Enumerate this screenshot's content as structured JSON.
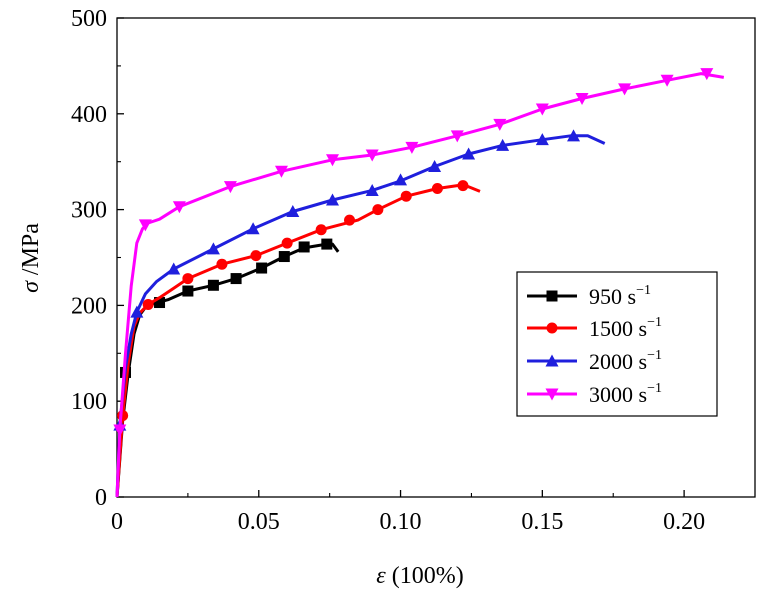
{
  "chart_data": {
    "type": "line",
    "title": "",
    "xlabel": {
      "symbol": "ε",
      "unit": " (100%)"
    },
    "ylabel": {
      "symbol": "σ",
      "unit": " /MPa"
    },
    "xlim": [
      0,
      0.225
    ],
    "ylim": [
      0,
      500
    ],
    "xticks": [
      "0",
      "0.05",
      "0.10",
      "0.15",
      "0.20"
    ],
    "xtick_values": [
      0,
      0.05,
      0.1,
      0.15,
      0.2
    ],
    "yticks": [
      "0",
      "100",
      "200",
      "300",
      "400",
      "500"
    ],
    "ytick_values": [
      0,
      100,
      200,
      300,
      400,
      500
    ],
    "grid": false,
    "legend_position": "center-right",
    "series": [
      {
        "name": "950 s",
        "superscript": "−1",
        "color": "#000000",
        "marker": "square",
        "points": [
          [
            0,
            0
          ],
          [
            0.002,
            80
          ],
          [
            0.004,
            130
          ],
          [
            0.006,
            170
          ],
          [
            0.008,
            190
          ],
          [
            0.01,
            198
          ],
          [
            0.013,
            202
          ],
          [
            0.018,
            206
          ],
          [
            0.025,
            215
          ],
          [
            0.034,
            221
          ],
          [
            0.042,
            228
          ],
          [
            0.051,
            239
          ],
          [
            0.059,
            251
          ],
          [
            0.066,
            260
          ],
          [
            0.074,
            264
          ],
          [
            0.076,
            264
          ],
          [
            0.078,
            256
          ]
        ],
        "markers": [
          [
            0.003,
            130
          ],
          [
            0.015,
            203
          ],
          [
            0.025,
            215
          ],
          [
            0.034,
            221
          ],
          [
            0.042,
            228
          ],
          [
            0.051,
            239
          ],
          [
            0.059,
            251
          ],
          [
            0.066,
            261
          ],
          [
            0.074,
            264
          ]
        ]
      },
      {
        "name": "1500 s",
        "superscript": "−1",
        "color": "#ff0000",
        "marker": "circle",
        "points": [
          [
            0,
            0
          ],
          [
            0.002,
            85
          ],
          [
            0.004,
            140
          ],
          [
            0.006,
            178
          ],
          [
            0.008,
            192
          ],
          [
            0.011,
            201
          ],
          [
            0.015,
            208
          ],
          [
            0.02,
            218
          ],
          [
            0.025,
            228
          ],
          [
            0.037,
            243
          ],
          [
            0.049,
            252
          ],
          [
            0.06,
            265
          ],
          [
            0.072,
            279
          ],
          [
            0.085,
            289
          ],
          [
            0.092,
            300
          ],
          [
            0.102,
            314
          ],
          [
            0.113,
            322
          ],
          [
            0.12,
            325
          ],
          [
            0.123,
            325
          ],
          [
            0.128,
            319
          ]
        ],
        "markers": [
          [
            0.002,
            85
          ],
          [
            0.011,
            201
          ],
          [
            0.025,
            228
          ],
          [
            0.037,
            243
          ],
          [
            0.049,
            252
          ],
          [
            0.06,
            265
          ],
          [
            0.072,
            279
          ],
          [
            0.082,
            289
          ],
          [
            0.092,
            300
          ],
          [
            0.102,
            314
          ],
          [
            0.113,
            322
          ],
          [
            0.122,
            325
          ]
        ]
      },
      {
        "name": "2000 s",
        "superscript": "−1",
        "color": "#1f1fdd",
        "marker": "triangle-up",
        "points": [
          [
            0,
            0
          ],
          [
            0.001,
            75
          ],
          [
            0.003,
            135
          ],
          [
            0.005,
            170
          ],
          [
            0.007,
            193
          ],
          [
            0.01,
            212
          ],
          [
            0.014,
            225
          ],
          [
            0.02,
            238
          ],
          [
            0.034,
            259
          ],
          [
            0.048,
            280
          ],
          [
            0.062,
            298
          ],
          [
            0.076,
            310
          ],
          [
            0.09,
            320
          ],
          [
            0.1,
            330
          ],
          [
            0.112,
            345
          ],
          [
            0.124,
            358
          ],
          [
            0.136,
            367
          ],
          [
            0.15,
            373
          ],
          [
            0.16,
            377
          ],
          [
            0.166,
            377
          ],
          [
            0.172,
            369
          ]
        ],
        "markers": [
          [
            0.001,
            75
          ],
          [
            0.007,
            193
          ],
          [
            0.02,
            238
          ],
          [
            0.034,
            259
          ],
          [
            0.048,
            280
          ],
          [
            0.062,
            298
          ],
          [
            0.076,
            310
          ],
          [
            0.09,
            320
          ],
          [
            0.1,
            331
          ],
          [
            0.112,
            345
          ],
          [
            0.124,
            358
          ],
          [
            0.136,
            367
          ],
          [
            0.15,
            373
          ],
          [
            0.161,
            377
          ]
        ]
      },
      {
        "name": "3000 s",
        "superscript": "−1",
        "color": "#ff00ff",
        "marker": "triangle-down",
        "points": [
          [
            0,
            0
          ],
          [
            0.001,
            70
          ],
          [
            0.003,
            150
          ],
          [
            0.005,
            220
          ],
          [
            0.007,
            265
          ],
          [
            0.009,
            280
          ],
          [
            0.011,
            286
          ],
          [
            0.015,
            290
          ],
          [
            0.022,
            303
          ],
          [
            0.04,
            324
          ],
          [
            0.058,
            340
          ],
          [
            0.076,
            352
          ],
          [
            0.09,
            357
          ],
          [
            0.104,
            365
          ],
          [
            0.12,
            377
          ],
          [
            0.135,
            389
          ],
          [
            0.15,
            405
          ],
          [
            0.164,
            416
          ],
          [
            0.179,
            426
          ],
          [
            0.194,
            435
          ],
          [
            0.206,
            442
          ],
          [
            0.21,
            440
          ],
          [
            0.214,
            438
          ]
        ],
        "markers": [
          [
            0.001,
            70
          ],
          [
            0.01,
            284
          ],
          [
            0.022,
            303
          ],
          [
            0.04,
            324
          ],
          [
            0.058,
            340
          ],
          [
            0.076,
            352
          ],
          [
            0.09,
            357
          ],
          [
            0.104,
            365
          ],
          [
            0.12,
            377
          ],
          [
            0.135,
            389
          ],
          [
            0.15,
            405
          ],
          [
            0.164,
            416
          ],
          [
            0.179,
            426
          ],
          [
            0.194,
            435
          ],
          [
            0.208,
            442
          ]
        ]
      }
    ]
  }
}
